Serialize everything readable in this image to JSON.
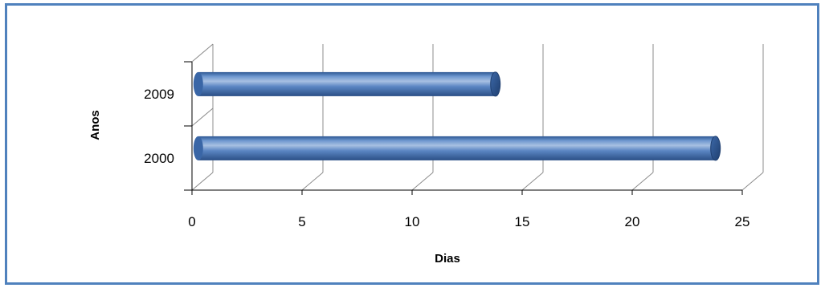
{
  "chart_data": {
    "type": "bar",
    "orientation": "horizontal",
    "style": "3d-cylinder",
    "categories": [
      "2000",
      "2009"
    ],
    "values": [
      23.5,
      13.5
    ],
    "xlabel": "Dias",
    "ylabel": "Anos",
    "xlim": [
      0,
      25
    ],
    "xticks": [
      "0",
      "5",
      "10",
      "15",
      "20",
      "25"
    ],
    "grid": "vertical",
    "legend": "none",
    "colors": {
      "bar": "#4f81bd",
      "bar_dark": "#2c5793",
      "bar_light": "#a7c0e2",
      "frame": "#4f81bd",
      "grid": "#8c8c8c"
    }
  }
}
